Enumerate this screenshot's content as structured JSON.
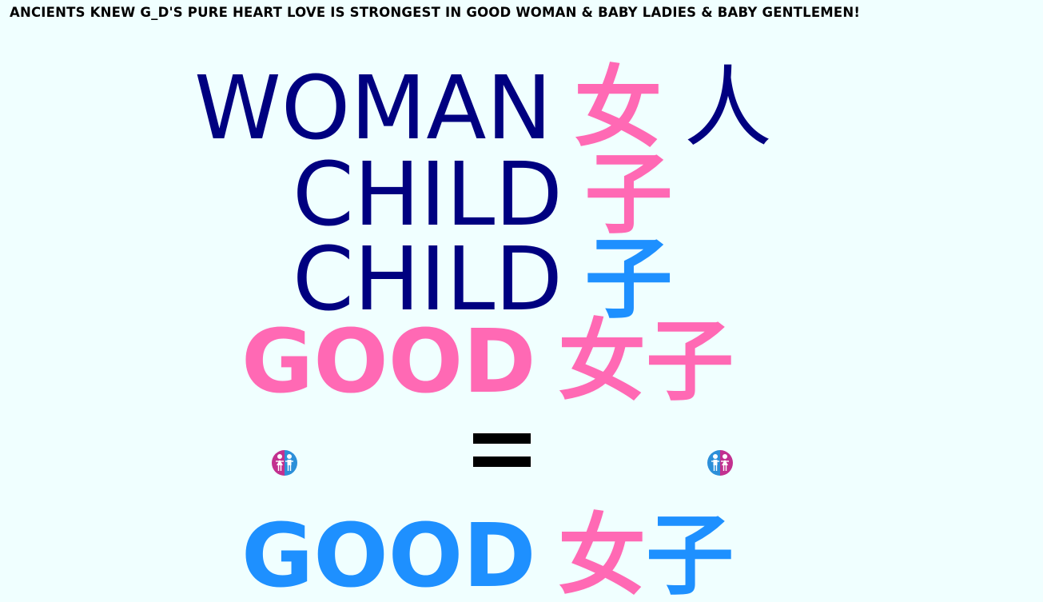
{
  "headline": "ANCIENTS KNEW G_D'S PURE HEART LOVE IS STRONGEST IN GOOD WOMAN & BABY LADIES & BABY GENTLEMEN!",
  "lines": [
    {
      "word": "WOMAN",
      "cjk_1": "女",
      "cjk_2": "人"
    },
    {
      "word": "CHILD",
      "cjk_1": "子"
    },
    {
      "word": "CHILD",
      "cjk_1": "子"
    },
    {
      "word": "GOOD",
      "cjk_1": "女",
      "cjk_2": "子"
    }
  ],
  "final_line": {
    "word": "GOOD",
    "cjk_1": "女",
    "cjk_2": "子"
  },
  "icons": {
    "left": "girl-boy-children-icon",
    "right": "boy-girl-children-icon"
  },
  "colors": {
    "background": "#f0ffff",
    "navy": "#000080",
    "pink": "#ff69b4",
    "blue": "#1e90ff",
    "magenta": "#c2308f"
  }
}
